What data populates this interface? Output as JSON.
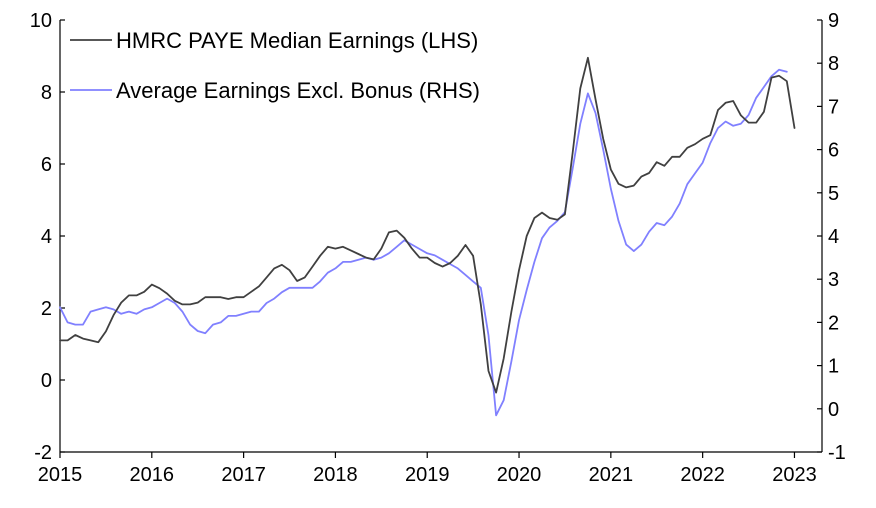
{
  "chart_data": {
    "type": "line",
    "title": "",
    "xlabel": "",
    "ylabel": "",
    "x_ticks": [
      "2015",
      "2016",
      "2017",
      "2018",
      "2019",
      "2020",
      "2021",
      "2022",
      "2023"
    ],
    "xlim": [
      2015,
      2023.3
    ],
    "ylim_left": [
      -2,
      10
    ],
    "y_ticks_left": [
      "-2",
      "0",
      "2",
      "4",
      "6",
      "8",
      "10"
    ],
    "ylim_right": [
      -1,
      9
    ],
    "y_ticks_right": [
      "-1",
      "0",
      "1",
      "2",
      "3",
      "4",
      "5",
      "6",
      "7",
      "8",
      "9"
    ],
    "grid": false,
    "legend_position": "top-left",
    "series": [
      {
        "name": "HMRC PAYE Median Earnings (LHS)",
        "axis": "left",
        "color": "#404040",
        "points": [
          [
            2015.0,
            1.1
          ],
          [
            2015.083,
            1.1
          ],
          [
            2015.167,
            1.25
          ],
          [
            2015.25,
            1.15
          ],
          [
            2015.333,
            1.1
          ],
          [
            2015.417,
            1.05
          ],
          [
            2015.5,
            1.35
          ],
          [
            2015.583,
            1.8
          ],
          [
            2015.667,
            2.15
          ],
          [
            2015.75,
            2.35
          ],
          [
            2015.833,
            2.35
          ],
          [
            2015.917,
            2.45
          ],
          [
            2016.0,
            2.65
          ],
          [
            2016.083,
            2.55
          ],
          [
            2016.167,
            2.4
          ],
          [
            2016.25,
            2.2
          ],
          [
            2016.333,
            2.1
          ],
          [
            2016.417,
            2.1
          ],
          [
            2016.5,
            2.15
          ],
          [
            2016.583,
            2.3
          ],
          [
            2016.667,
            2.3
          ],
          [
            2016.75,
            2.3
          ],
          [
            2016.833,
            2.25
          ],
          [
            2016.917,
            2.3
          ],
          [
            2017.0,
            2.3
          ],
          [
            2017.083,
            2.45
          ],
          [
            2017.167,
            2.6
          ],
          [
            2017.25,
            2.85
          ],
          [
            2017.333,
            3.1
          ],
          [
            2017.417,
            3.2
          ],
          [
            2017.5,
            3.05
          ],
          [
            2017.583,
            2.75
          ],
          [
            2017.667,
            2.85
          ],
          [
            2017.75,
            3.15
          ],
          [
            2017.833,
            3.45
          ],
          [
            2017.917,
            3.7
          ],
          [
            2018.0,
            3.65
          ],
          [
            2018.083,
            3.7
          ],
          [
            2018.167,
            3.6
          ],
          [
            2018.25,
            3.5
          ],
          [
            2018.333,
            3.4
          ],
          [
            2018.417,
            3.35
          ],
          [
            2018.5,
            3.65
          ],
          [
            2018.583,
            4.1
          ],
          [
            2018.667,
            4.15
          ],
          [
            2018.75,
            3.95
          ],
          [
            2018.833,
            3.65
          ],
          [
            2018.917,
            3.4
          ],
          [
            2019.0,
            3.4
          ],
          [
            2019.083,
            3.25
          ],
          [
            2019.167,
            3.15
          ],
          [
            2019.25,
            3.25
          ],
          [
            2019.333,
            3.45
          ],
          [
            2019.417,
            3.75
          ],
          [
            2019.5,
            3.45
          ],
          [
            2019.583,
            2.1
          ],
          [
            2019.667,
            0.25
          ],
          [
            2019.75,
            -0.35
          ],
          [
            2019.833,
            0.6
          ],
          [
            2019.917,
            1.9
          ],
          [
            2020.0,
            3.05
          ],
          [
            2020.083,
            4.0
          ],
          [
            2020.167,
            4.5
          ],
          [
            2020.25,
            4.65
          ],
          [
            2020.333,
            4.5
          ],
          [
            2020.417,
            4.45
          ],
          [
            2020.5,
            4.6
          ],
          [
            2020.583,
            6.3
          ],
          [
            2020.667,
            8.1
          ],
          [
            2020.75,
            8.95
          ],
          [
            2020.833,
            7.8
          ],
          [
            2020.917,
            6.7
          ],
          [
            2021.0,
            5.85
          ],
          [
            2021.083,
            5.45
          ],
          [
            2021.167,
            5.35
          ],
          [
            2021.25,
            5.4
          ],
          [
            2021.333,
            5.65
          ],
          [
            2021.417,
            5.75
          ],
          [
            2021.5,
            6.05
          ],
          [
            2021.583,
            5.95
          ],
          [
            2021.667,
            6.2
          ],
          [
            2021.75,
            6.2
          ],
          [
            2021.833,
            6.45
          ],
          [
            2021.917,
            6.55
          ],
          [
            2022.0,
            6.7
          ],
          [
            2022.083,
            6.8
          ],
          [
            2022.167,
            7.5
          ],
          [
            2022.25,
            7.7
          ],
          [
            2022.333,
            7.75
          ],
          [
            2022.417,
            7.35
          ],
          [
            2022.5,
            7.15
          ],
          [
            2022.583,
            7.15
          ],
          [
            2022.667,
            7.45
          ],
          [
            2022.75,
            8.4
          ],
          [
            2022.833,
            8.45
          ],
          [
            2022.917,
            8.3
          ],
          [
            2023.0,
            7.0
          ]
        ]
      },
      {
        "name": "Average Earnings Excl. Bonus (RHS)",
        "axis": "right",
        "color": "#8080ff",
        "points": [
          [
            2015.0,
            2.35
          ],
          [
            2015.083,
            2.0
          ],
          [
            2015.167,
            1.95
          ],
          [
            2015.25,
            1.95
          ],
          [
            2015.333,
            2.25
          ],
          [
            2015.417,
            2.3
          ],
          [
            2015.5,
            2.35
          ],
          [
            2015.583,
            2.3
          ],
          [
            2015.667,
            2.2
          ],
          [
            2015.75,
            2.25
          ],
          [
            2015.833,
            2.2
          ],
          [
            2015.917,
            2.3
          ],
          [
            2016.0,
            2.35
          ],
          [
            2016.083,
            2.45
          ],
          [
            2016.167,
            2.55
          ],
          [
            2016.25,
            2.45
          ],
          [
            2016.333,
            2.25
          ],
          [
            2016.417,
            1.95
          ],
          [
            2016.5,
            1.8
          ],
          [
            2016.583,
            1.75
          ],
          [
            2016.667,
            1.95
          ],
          [
            2016.75,
            2.0
          ],
          [
            2016.833,
            2.15
          ],
          [
            2016.917,
            2.15
          ],
          [
            2017.0,
            2.2
          ],
          [
            2017.083,
            2.25
          ],
          [
            2017.167,
            2.25
          ],
          [
            2017.25,
            2.45
          ],
          [
            2017.333,
            2.55
          ],
          [
            2017.417,
            2.7
          ],
          [
            2017.5,
            2.8
          ],
          [
            2017.583,
            2.8
          ],
          [
            2017.667,
            2.8
          ],
          [
            2017.75,
            2.8
          ],
          [
            2017.833,
            2.95
          ],
          [
            2017.917,
            3.15
          ],
          [
            2018.0,
            3.25
          ],
          [
            2018.083,
            3.4
          ],
          [
            2018.167,
            3.4
          ],
          [
            2018.25,
            3.45
          ],
          [
            2018.333,
            3.5
          ],
          [
            2018.417,
            3.45
          ],
          [
            2018.5,
            3.5
          ],
          [
            2018.583,
            3.6
          ],
          [
            2018.667,
            3.75
          ],
          [
            2018.75,
            3.9
          ],
          [
            2018.833,
            3.8
          ],
          [
            2018.917,
            3.7
          ],
          [
            2019.0,
            3.6
          ],
          [
            2019.083,
            3.55
          ],
          [
            2019.167,
            3.45
          ],
          [
            2019.25,
            3.35
          ],
          [
            2019.333,
            3.25
          ],
          [
            2019.417,
            3.1
          ],
          [
            2019.5,
            2.95
          ],
          [
            2019.583,
            2.8
          ],
          [
            2019.667,
            1.7
          ],
          [
            2019.75,
            -0.15
          ],
          [
            2019.833,
            0.2
          ],
          [
            2019.917,
            1.1
          ],
          [
            2020.0,
            2.05
          ],
          [
            2020.083,
            2.75
          ],
          [
            2020.167,
            3.4
          ],
          [
            2020.25,
            3.95
          ],
          [
            2020.333,
            4.2
          ],
          [
            2020.417,
            4.35
          ],
          [
            2020.5,
            4.55
          ],
          [
            2020.583,
            5.55
          ],
          [
            2020.667,
            6.6
          ],
          [
            2020.75,
            7.3
          ],
          [
            2020.833,
            6.85
          ],
          [
            2020.917,
            6.0
          ],
          [
            2021.0,
            5.1
          ],
          [
            2021.083,
            4.35
          ],
          [
            2021.167,
            3.8
          ],
          [
            2021.25,
            3.65
          ],
          [
            2021.333,
            3.8
          ],
          [
            2021.417,
            4.1
          ],
          [
            2021.5,
            4.3
          ],
          [
            2021.583,
            4.25
          ],
          [
            2021.667,
            4.45
          ],
          [
            2021.75,
            4.75
          ],
          [
            2021.833,
            5.2
          ],
          [
            2021.917,
            5.45
          ],
          [
            2022.0,
            5.7
          ],
          [
            2022.083,
            6.15
          ],
          [
            2022.167,
            6.5
          ],
          [
            2022.25,
            6.65
          ],
          [
            2022.333,
            6.55
          ],
          [
            2022.417,
            6.6
          ],
          [
            2022.5,
            6.8
          ],
          [
            2022.583,
            7.2
          ],
          [
            2022.667,
            7.45
          ],
          [
            2022.75,
            7.7
          ],
          [
            2022.833,
            7.85
          ],
          [
            2022.917,
            7.8
          ]
        ]
      }
    ]
  }
}
